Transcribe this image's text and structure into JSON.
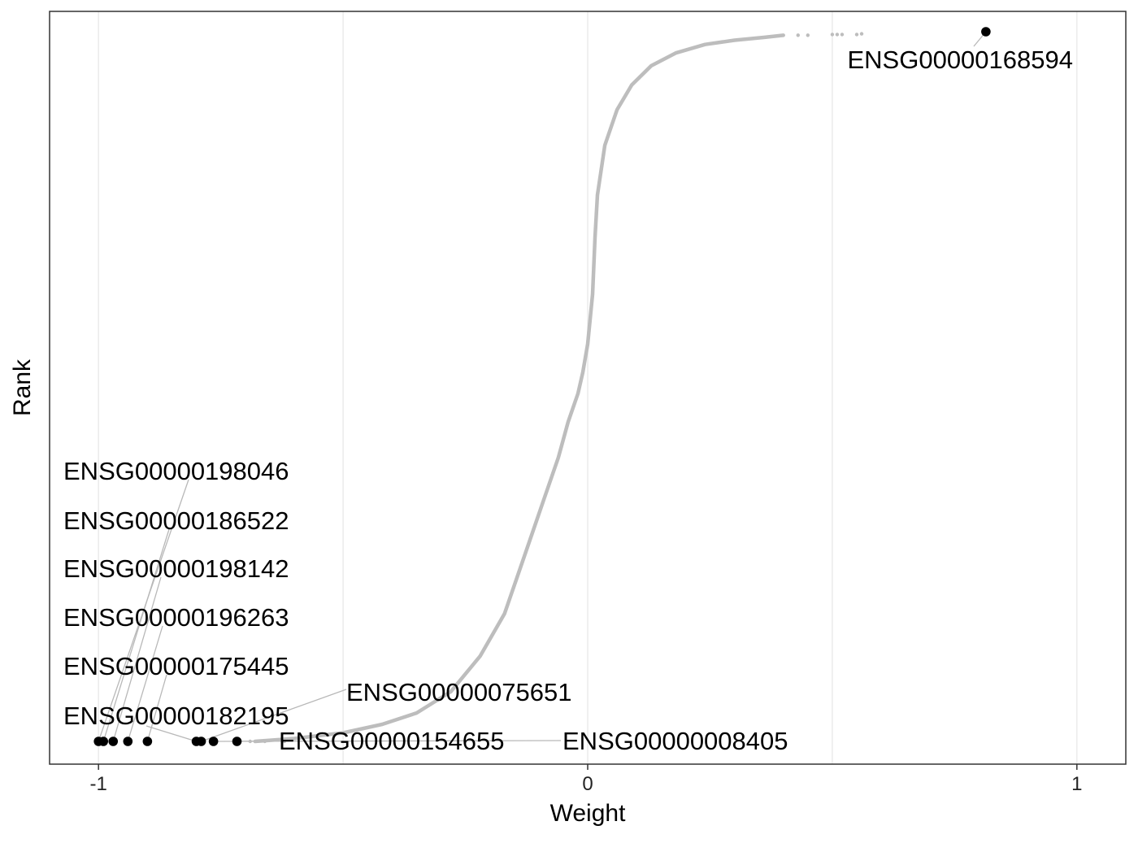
{
  "chart_data": {
    "type": "scatter",
    "title": "",
    "xlabel": "Weight",
    "ylabel": "Rank",
    "xlim": [
      -1.1,
      1.1
    ],
    "ylim": [
      0,
      1
    ],
    "x_ticks": [
      -1,
      0,
      1
    ],
    "x_tick_labels": [
      "-1",
      "0",
      "1"
    ],
    "y_ticks_shown": false,
    "grid": "vertical major and minor lines",
    "series": [
      {
        "role": "all-genes",
        "color": "#bdbdbd",
        "curve": {
          "x": [
            -0.68,
            -0.6,
            -0.5,
            -0.42,
            -0.35,
            -0.28,
            -0.22,
            -0.17,
            -0.13,
            -0.09,
            -0.06,
            -0.04,
            -0.02,
            -0.01,
            0.0,
            0.01,
            0.015,
            0.02,
            0.035,
            0.06,
            0.09,
            0.13,
            0.18,
            0.24,
            0.3,
            0.36,
            0.4
          ],
          "y": [
            0.0,
            0.004,
            0.012,
            0.024,
            0.04,
            0.07,
            0.12,
            0.18,
            0.26,
            0.34,
            0.4,
            0.45,
            0.49,
            0.52,
            0.56,
            0.63,
            0.71,
            0.77,
            0.84,
            0.89,
            0.925,
            0.952,
            0.97,
            0.982,
            0.988,
            0.992,
            0.995
          ]
        },
        "sparse_tail": {
          "x": [
            -0.62,
            -0.66,
            -0.69,
            0.43,
            0.45,
            0.5,
            0.51,
            0.52,
            0.55,
            0.56
          ],
          "y": [
            0.0,
            0.0,
            0.0,
            0.995,
            0.995,
            0.996,
            0.996,
            0.996,
            0.996,
            0.997
          ]
        }
      },
      {
        "role": "highlighted-genes",
        "color": "#000000",
        "points": [
          {
            "x": -1.0,
            "y": 0.0
          },
          {
            "x": -0.99,
            "y": 0.0
          },
          {
            "x": -0.97,
            "y": 0.0
          },
          {
            "x": -0.94,
            "y": 0.0
          },
          {
            "x": -0.9,
            "y": 0.0
          },
          {
            "x": -0.8,
            "y": 0.0
          },
          {
            "x": -0.79,
            "y": 0.0
          },
          {
            "x": -0.765,
            "y": 0.0
          },
          {
            "x": -0.717,
            "y": 0.0
          },
          {
            "x": 0.814,
            "y": 1.0
          }
        ]
      }
    ],
    "annotations": [
      {
        "text": "ENSG00000198046",
        "point": 0
      },
      {
        "text": "ENSG00000186522",
        "point": 1
      },
      {
        "text": "ENSG00000198142",
        "point": 2
      },
      {
        "text": "ENSG00000196263",
        "point": 3
      },
      {
        "text": "ENSG00000175445",
        "point": 4
      },
      {
        "text": "ENSG00000182195",
        "point": 5
      },
      {
        "text": "ENSG00000075651",
        "point": 6
      },
      {
        "text": "ENSG00000154655",
        "point": 8
      },
      {
        "text": "ENSG00000008405",
        "point": 7
      },
      {
        "text": "ENSG00000168594",
        "point": 9
      }
    ]
  }
}
